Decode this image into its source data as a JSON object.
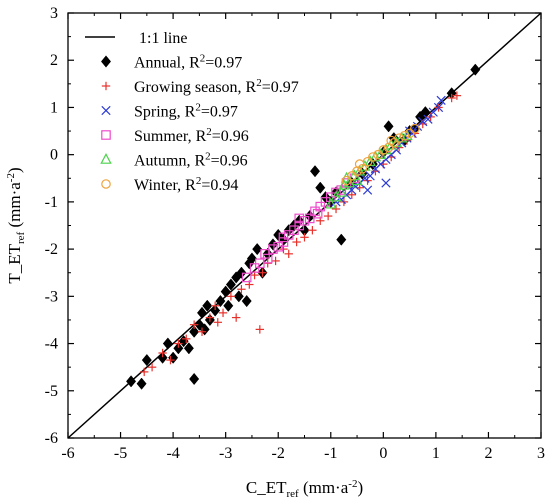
{
  "chart_data": {
    "type": "scatter",
    "xlabel": {
      "main": "C_ET",
      "sub": "ref",
      "unit_pre": " (mm·a",
      "unit_sup": "-2",
      "unit_post": ")"
    },
    "ylabel": {
      "main": "T_ET",
      "sub": "ref",
      "unit_pre": " (mm·a",
      "unit_sup": "-2",
      "unit_post": ")"
    },
    "xlim": [
      -6,
      3
    ],
    "ylim": [
      -6,
      3
    ],
    "xticks": [
      -6,
      -5,
      -4,
      -3,
      -2,
      -1,
      0,
      1,
      2,
      3
    ],
    "yticks": [
      -6,
      -5,
      -4,
      -3,
      -2,
      -1,
      0,
      1,
      2,
      3
    ],
    "grid": false,
    "legend_position": "top-left",
    "reference_line": {
      "name": "1:1 line",
      "from": [
        -6,
        -6
      ],
      "to": [
        3,
        3
      ]
    },
    "series": [
      {
        "name": "Annual, R²=0.97",
        "label_pre": "Annual, R",
        "r2_value": "=0.97",
        "marker": "diamond",
        "color": "#000000",
        "points": [
          [
            -4.8,
            -4.8
          ],
          [
            -4.6,
            -4.85
          ],
          [
            -4.5,
            -4.35
          ],
          [
            -4.2,
            -4.3
          ],
          [
            -4.1,
            -4.0
          ],
          [
            -4.0,
            -4.3
          ],
          [
            -3.9,
            -4.1
          ],
          [
            -3.8,
            -3.95
          ],
          [
            -3.7,
            -4.1
          ],
          [
            -3.6,
            -4.75
          ],
          [
            -3.6,
            -3.75
          ],
          [
            -3.5,
            -3.6
          ],
          [
            -3.45,
            -3.35
          ],
          [
            -3.4,
            -3.7
          ],
          [
            -3.35,
            -3.2
          ],
          [
            -3.3,
            -3.5
          ],
          [
            -3.2,
            -3.3
          ],
          [
            -3.1,
            -3.1
          ],
          [
            -3.0,
            -2.9
          ],
          [
            -2.95,
            -3.2
          ],
          [
            -2.9,
            -2.75
          ],
          [
            -2.8,
            -2.6
          ],
          [
            -2.75,
            -3.0
          ],
          [
            -2.7,
            -2.5
          ],
          [
            -2.6,
            -3.1
          ],
          [
            -2.55,
            -2.3
          ],
          [
            -2.5,
            -2.2
          ],
          [
            -2.4,
            -2.0
          ],
          [
            -2.3,
            -2.5
          ],
          [
            -2.2,
            -2.1
          ],
          [
            -2.1,
            -1.9
          ],
          [
            -2.0,
            -1.7
          ],
          [
            -1.9,
            -1.8
          ],
          [
            -1.8,
            -1.6
          ],
          [
            -1.7,
            -1.5
          ],
          [
            -1.6,
            -1.4
          ],
          [
            -1.5,
            -1.6
          ],
          [
            -1.4,
            -1.3
          ],
          [
            -1.3,
            -0.35
          ],
          [
            -1.2,
            -0.7
          ],
          [
            -1.1,
            -0.9
          ],
          [
            -1.0,
            -1.0
          ],
          [
            -0.9,
            -0.8
          ],
          [
            -0.8,
            -1.8
          ],
          [
            -0.6,
            -0.6
          ],
          [
            -0.4,
            -0.4
          ],
          [
            -0.2,
            -0.2
          ],
          [
            0.0,
            0.05
          ],
          [
            0.1,
            0.6
          ],
          [
            0.2,
            0.35
          ],
          [
            0.4,
            0.3
          ],
          [
            0.5,
            0.5
          ],
          [
            0.6,
            0.55
          ],
          [
            0.7,
            0.8
          ],
          [
            0.8,
            0.9
          ],
          [
            1.3,
            1.3
          ],
          [
            1.75,
            1.8
          ]
        ]
      },
      {
        "name": "Growing season, R²=0.97",
        "label_pre": "Growing season, R",
        "r2_value": "=0.97",
        "marker": "plus",
        "color": "#e8302a",
        "points": [
          [
            -4.55,
            -4.6
          ],
          [
            -4.4,
            -4.5
          ],
          [
            -4.2,
            -4.2
          ],
          [
            -4.05,
            -4.35
          ],
          [
            -3.9,
            -4.0
          ],
          [
            -3.75,
            -3.9
          ],
          [
            -3.6,
            -3.6
          ],
          [
            -3.45,
            -3.75
          ],
          [
            -3.3,
            -3.45
          ],
          [
            -3.2,
            -3.2
          ],
          [
            -3.05,
            -3.35
          ],
          [
            -2.9,
            -3.0
          ],
          [
            -2.8,
            -3.45
          ],
          [
            -2.7,
            -2.85
          ],
          [
            -2.55,
            -2.75
          ],
          [
            -2.45,
            -2.55
          ],
          [
            -2.3,
            -2.5
          ],
          [
            -2.2,
            -2.3
          ],
          [
            -2.05,
            -2.25
          ],
          [
            -1.9,
            -2.0
          ],
          [
            -1.8,
            -2.1
          ],
          [
            -1.65,
            -1.85
          ],
          [
            -1.5,
            -1.75
          ],
          [
            -1.35,
            -1.6
          ],
          [
            -1.2,
            -1.4
          ],
          [
            -1.05,
            -1.3
          ],
          [
            -0.9,
            -1.15
          ],
          [
            -0.75,
            -1.0
          ],
          [
            -0.6,
            -0.85
          ],
          [
            -0.45,
            -0.7
          ],
          [
            -0.3,
            -0.55
          ],
          [
            -0.15,
            -0.35
          ],
          [
            0.0,
            -0.2
          ],
          [
            0.15,
            -0.05
          ],
          [
            0.3,
            0.15
          ],
          [
            0.45,
            0.3
          ],
          [
            0.6,
            0.45
          ],
          [
            0.75,
            0.65
          ],
          [
            0.9,
            0.8
          ],
          [
            1.05,
            1.0
          ],
          [
            1.3,
            1.2
          ],
          [
            1.4,
            1.25
          ],
          [
            -2.35,
            -3.7
          ],
          [
            -3.15,
            -3.55
          ]
        ]
      },
      {
        "name": "Spring, R²=0.97",
        "label_pre": "Spring, R",
        "r2_value": "=0.97",
        "marker": "cross",
        "color": "#2c3bd6",
        "points": [
          [
            -0.9,
            -1.0
          ],
          [
            -0.8,
            -0.95
          ],
          [
            -0.7,
            -0.85
          ],
          [
            -0.6,
            -0.75
          ],
          [
            -0.55,
            -0.65
          ],
          [
            -0.45,
            -0.6
          ],
          [
            -0.35,
            -0.5
          ],
          [
            -0.25,
            -0.45
          ],
          [
            -0.15,
            -0.3
          ],
          [
            -0.05,
            -0.2
          ],
          [
            0.05,
            -0.1
          ],
          [
            0.15,
            0.0
          ],
          [
            0.25,
            0.1
          ],
          [
            0.35,
            0.25
          ],
          [
            0.45,
            0.35
          ],
          [
            0.55,
            0.45
          ],
          [
            0.65,
            0.6
          ],
          [
            0.75,
            0.7
          ],
          [
            0.85,
            0.75
          ],
          [
            0.95,
            0.9
          ],
          [
            1.05,
            1.0
          ],
          [
            1.1,
            1.15
          ],
          [
            0.05,
            -0.6
          ],
          [
            -0.3,
            -0.75
          ],
          [
            0.5,
            0.5
          ]
        ]
      },
      {
        "name": "Summer, R²=0.96",
        "label_pre": "Summer, R",
        "r2_value": "=0.96",
        "marker": "square",
        "color": "#ee4ccb",
        "points": [
          [
            -2.6,
            -2.6
          ],
          [
            -2.45,
            -2.4
          ],
          [
            -2.35,
            -2.3
          ],
          [
            -2.25,
            -2.1
          ],
          [
            -2.1,
            -2.0
          ],
          [
            -2.0,
            -1.95
          ],
          [
            -1.9,
            -1.75
          ],
          [
            -1.8,
            -1.7
          ],
          [
            -1.7,
            -1.6
          ],
          [
            -1.6,
            -1.5
          ],
          [
            -1.5,
            -1.4
          ],
          [
            -1.4,
            -1.35
          ],
          [
            -1.3,
            -1.2
          ],
          [
            -1.2,
            -1.1
          ],
          [
            -1.1,
            -1.0
          ],
          [
            -1.0,
            -0.9
          ],
          [
            -0.9,
            -0.8
          ],
          [
            -0.8,
            -0.75
          ],
          [
            -0.7,
            -0.6
          ],
          [
            -0.55,
            -0.5
          ],
          [
            -1.6,
            -1.35
          ],
          [
            -1.9,
            -1.85
          ],
          [
            -2.2,
            -2.2
          ],
          [
            -1.25,
            -1.25
          ]
        ]
      },
      {
        "name": "Autumn, R²=0.96",
        "label_pre": "Autumn, R",
        "r2_value": "=0.96",
        "marker": "triangle",
        "color": "#4cd44c",
        "points": [
          [
            -1.0,
            -1.05
          ],
          [
            -0.9,
            -0.9
          ],
          [
            -0.8,
            -0.8
          ],
          [
            -0.75,
            -0.65
          ],
          [
            -0.65,
            -0.6
          ],
          [
            -0.55,
            -0.45
          ],
          [
            -0.45,
            -0.35
          ],
          [
            -0.35,
            -0.25
          ],
          [
            -0.25,
            -0.15
          ],
          [
            -0.15,
            -0.05
          ],
          [
            -0.05,
            0.0
          ],
          [
            0.05,
            0.1
          ],
          [
            0.15,
            0.2
          ],
          [
            0.25,
            0.25
          ],
          [
            0.35,
            0.35
          ],
          [
            0.45,
            0.4
          ],
          [
            -0.7,
            -0.5
          ],
          [
            -0.5,
            -0.55
          ]
        ]
      },
      {
        "name": "Winter, R²=0.94",
        "label_pre": "Winter, R",
        "r2_value": "=0.94",
        "marker": "circle",
        "color": "#f0a23c",
        "points": [
          [
            -0.7,
            -0.55
          ],
          [
            -0.6,
            -0.45
          ],
          [
            -0.5,
            -0.35
          ],
          [
            -0.4,
            -0.3
          ],
          [
            -0.3,
            -0.15
          ],
          [
            -0.2,
            -0.05
          ],
          [
            -0.1,
            0.0
          ],
          [
            0.0,
            0.1
          ],
          [
            0.1,
            0.15
          ],
          [
            0.2,
            0.25
          ],
          [
            0.3,
            0.35
          ],
          [
            0.4,
            0.4
          ],
          [
            0.5,
            0.45
          ],
          [
            0.6,
            0.55
          ],
          [
            -0.45,
            -0.2
          ],
          [
            0.15,
            0.3
          ]
        ]
      }
    ]
  }
}
